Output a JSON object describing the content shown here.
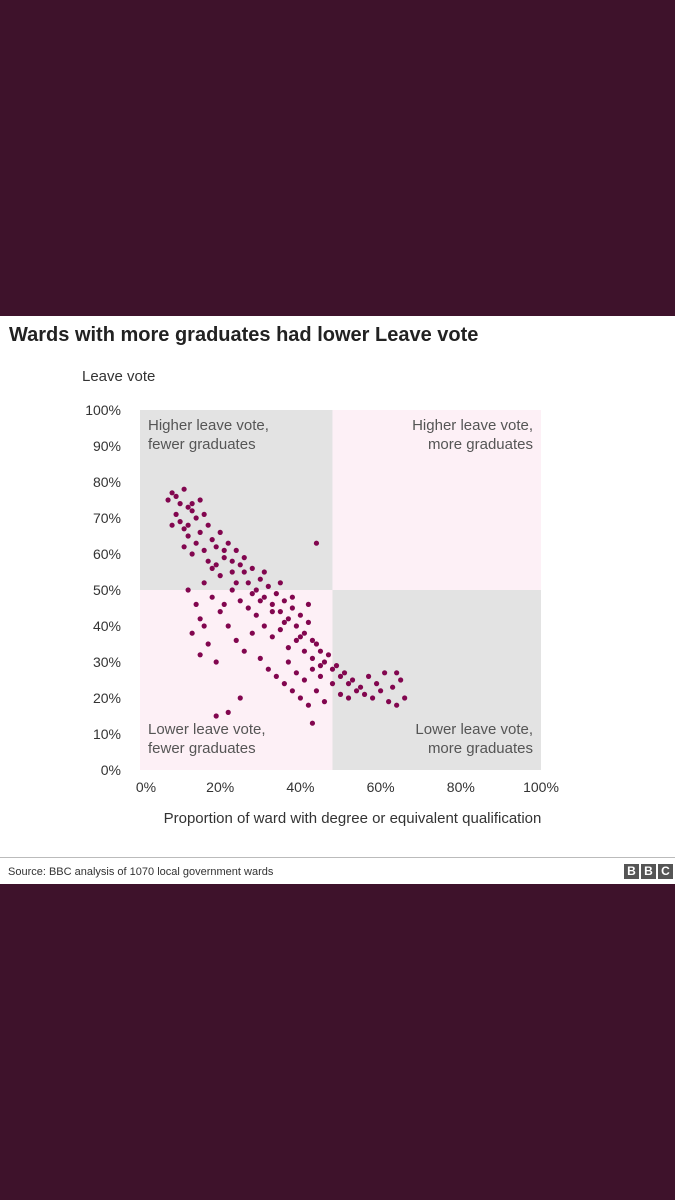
{
  "header": {
    "title": "Wards with more graduates had lower Leave vote"
  },
  "footer": {
    "source": "Source: BBC analysis of 1070 local government wards",
    "logo_letters": [
      "B",
      "B",
      "C"
    ]
  },
  "colors": {
    "background": "#3e122b",
    "points": "#82064f",
    "quadrant_grey": "#e3e3e3",
    "quadrant_pink": "#fdf0f6"
  },
  "chart_data": {
    "type": "scatter",
    "title": "Wards with more graduates had lower Leave vote",
    "xlabel": "Proportion of ward with degree or equivalent qualification",
    "ylabel": "Leave vote",
    "xlim": [
      0,
      100
    ],
    "ylim": [
      0,
      100
    ],
    "x_ticks": [
      "0%",
      "20%",
      "40%",
      "60%",
      "80%",
      "100%"
    ],
    "y_ticks": [
      "0%",
      "10%",
      "20%",
      "30%",
      "40%",
      "50%",
      "60%",
      "70%",
      "80%",
      "90%",
      "100%"
    ],
    "grid": false,
    "quadrant_split": {
      "x": 48,
      "y": 50
    },
    "quadrants": [
      {
        "label_lines": [
          "Higher leave vote,",
          "fewer graduates"
        ],
        "position": "top-left"
      },
      {
        "label_lines": [
          "Higher leave vote,",
          "more graduates"
        ],
        "position": "top-right"
      },
      {
        "label_lines": [
          "Lower leave vote,",
          "fewer graduates"
        ],
        "position": "bottom-left"
      },
      {
        "label_lines": [
          "Lower leave vote,",
          "more graduates"
        ],
        "position": "bottom-right"
      }
    ],
    "points": [
      [
        7,
        75
      ],
      [
        8,
        77
      ],
      [
        9,
        76
      ],
      [
        10,
        74
      ],
      [
        11,
        78
      ],
      [
        12,
        73
      ],
      [
        9,
        71
      ],
      [
        10,
        69
      ],
      [
        8,
        68
      ],
      [
        11,
        67
      ],
      [
        13,
        72
      ],
      [
        14,
        70
      ],
      [
        12,
        65
      ],
      [
        15,
        66
      ],
      [
        16,
        71
      ],
      [
        17,
        68
      ],
      [
        18,
        64
      ],
      [
        14,
        63
      ],
      [
        13,
        60
      ],
      [
        19,
        62
      ],
      [
        20,
        66
      ],
      [
        21,
        59
      ],
      [
        22,
        63
      ],
      [
        23,
        58
      ],
      [
        24,
        61
      ],
      [
        25,
        57
      ],
      [
        18,
        56
      ],
      [
        20,
        54
      ],
      [
        26,
        55
      ],
      [
        27,
        52
      ],
      [
        28,
        56
      ],
      [
        29,
        50
      ],
      [
        30,
        53
      ],
      [
        31,
        48
      ],
      [
        32,
        51
      ],
      [
        33,
        46
      ],
      [
        34,
        49
      ],
      [
        35,
        44
      ],
      [
        36,
        47
      ],
      [
        37,
        42
      ],
      [
        38,
        45
      ],
      [
        39,
        40
      ],
      [
        40,
        43
      ],
      [
        41,
        38
      ],
      [
        42,
        41
      ],
      [
        43,
        36
      ],
      [
        44,
        35
      ],
      [
        45,
        33
      ],
      [
        46,
        30
      ],
      [
        47,
        32
      ],
      [
        48,
        28
      ],
      [
        49,
        29
      ],
      [
        50,
        26
      ],
      [
        51,
        27
      ],
      [
        52,
        24
      ],
      [
        53,
        25
      ],
      [
        54,
        22
      ],
      [
        55,
        23
      ],
      [
        56,
        21
      ],
      [
        57,
        26
      ],
      [
        58,
        20
      ],
      [
        59,
        24
      ],
      [
        60,
        22
      ],
      [
        61,
        27
      ],
      [
        62,
        19
      ],
      [
        63,
        23
      ],
      [
        64,
        18
      ],
      [
        65,
        25
      ],
      [
        66,
        20
      ],
      [
        64,
        27
      ],
      [
        12,
        50
      ],
      [
        14,
        46
      ],
      [
        15,
        42
      ],
      [
        16,
        40
      ],
      [
        13,
        38
      ],
      [
        17,
        35
      ],
      [
        15,
        32
      ],
      [
        19,
        30
      ],
      [
        20,
        44
      ],
      [
        22,
        40
      ],
      [
        24,
        36
      ],
      [
        26,
        33
      ],
      [
        28,
        38
      ],
      [
        30,
        31
      ],
      [
        32,
        28
      ],
      [
        34,
        26
      ],
      [
        36,
        24
      ],
      [
        38,
        22
      ],
      [
        40,
        20
      ],
      [
        42,
        18
      ],
      [
        44,
        22
      ],
      [
        46,
        19
      ],
      [
        48,
        24
      ],
      [
        50,
        21
      ],
      [
        52,
        20
      ],
      [
        37,
        30
      ],
      [
        39,
        27
      ],
      [
        41,
        25
      ],
      [
        43,
        28
      ],
      [
        45,
        26
      ],
      [
        25,
        20
      ],
      [
        22,
        16
      ],
      [
        19,
        15
      ],
      [
        43,
        13
      ],
      [
        44,
        63
      ],
      [
        16,
        52
      ],
      [
        18,
        48
      ],
      [
        21,
        46
      ],
      [
        23,
        50
      ],
      [
        25,
        47
      ],
      [
        27,
        45
      ],
      [
        29,
        43
      ],
      [
        31,
        40
      ],
      [
        33,
        37
      ],
      [
        35,
        39
      ],
      [
        37,
        34
      ],
      [
        39,
        36
      ],
      [
        41,
        33
      ],
      [
        43,
        31
      ],
      [
        45,
        29
      ],
      [
        11,
        62
      ],
      [
        12,
        68
      ],
      [
        13,
        74
      ],
      [
        15,
        75
      ],
      [
        16,
        61
      ],
      [
        17,
        58
      ],
      [
        19,
        57
      ],
      [
        21,
        61
      ],
      [
        23,
        55
      ],
      [
        24,
        52
      ],
      [
        26,
        59
      ],
      [
        28,
        49
      ],
      [
        30,
        47
      ],
      [
        31,
        55
      ],
      [
        33,
        44
      ],
      [
        35,
        52
      ],
      [
        36,
        41
      ],
      [
        38,
        48
      ],
      [
        40,
        37
      ],
      [
        42,
        46
      ]
    ]
  }
}
